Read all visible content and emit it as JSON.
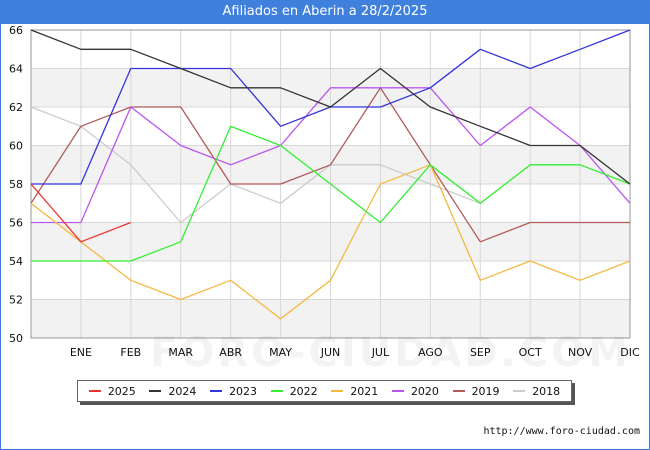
{
  "header": {
    "title": "Afiliados en Aberin a 28/2/2025"
  },
  "footer": {
    "url": "http://www.foro-ciudad.com",
    "watermark": "FORO-CIUDAD.COM"
  },
  "chart_data": {
    "type": "line",
    "title": "Afiliados en Aberin a 28/2/2025",
    "categories": [
      "",
      "ENE",
      "FEB",
      "MAR",
      "ABR",
      "MAY",
      "JUN",
      "JUL",
      "AGO",
      "SEP",
      "OCT",
      "NOV",
      "DIC"
    ],
    "ylim": [
      50,
      66
    ],
    "yticks": [
      50,
      52,
      54,
      56,
      58,
      60,
      62,
      64,
      66
    ],
    "grid": true,
    "legend_position": "bottom",
    "series": [
      {
        "name": "2025",
        "color": "#ee3333",
        "values": [
          58,
          55,
          56,
          null,
          null,
          null,
          null,
          null,
          null,
          null,
          null,
          null,
          null
        ]
      },
      {
        "name": "2024",
        "color": "#333333",
        "values": [
          66,
          65,
          65,
          64,
          63,
          63,
          62,
          64,
          62,
          61,
          60,
          60,
          58
        ]
      },
      {
        "name": "2023",
        "color": "#3333dd",
        "values": [
          58,
          58,
          64,
          64,
          64,
          61,
          62,
          62,
          63,
          65,
          64,
          65,
          66
        ]
      },
      {
        "name": "2022",
        "color": "#33ee33",
        "values": [
          54,
          54,
          54,
          55,
          61,
          60,
          58,
          56,
          59,
          57,
          59,
          59,
          58
        ]
      },
      {
        "name": "2021",
        "color": "#f5b942",
        "values": [
          57,
          55,
          53,
          52,
          53,
          51,
          53,
          58,
          59,
          53,
          54,
          53,
          54
        ]
      },
      {
        "name": "2020",
        "color": "#bb55ee",
        "values": [
          56,
          56,
          62,
          60,
          59,
          60,
          63,
          63,
          63,
          60,
          62,
          60,
          57
        ]
      },
      {
        "name": "2019",
        "color": "#b05a5a",
        "values": [
          57,
          61,
          62,
          62,
          58,
          58,
          59,
          63,
          59,
          55,
          56,
          56,
          56
        ]
      },
      {
        "name": "2018",
        "color": "#cccccc",
        "values": [
          62,
          61,
          59,
          56,
          58,
          57,
          59,
          59,
          58,
          57,
          null,
          null,
          null
        ]
      }
    ]
  }
}
